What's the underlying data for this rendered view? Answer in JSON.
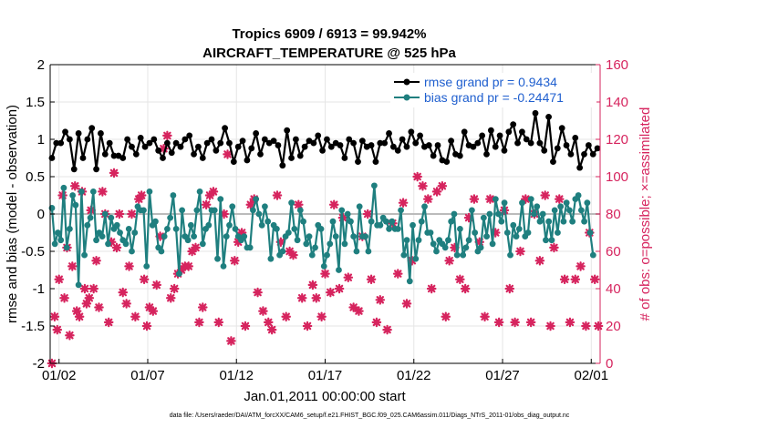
{
  "chart_data": {
    "type": "line",
    "title": "Tropics 6909 / 6913 = 99.942%",
    "subtitle": "AIRCRAFT_TEMPERATURE @ 525 hPa",
    "xlabel": "Jan.01,2011 00:00:00 start",
    "ylabel_left": "rmse and bias (model - observation)",
    "ylabel_right": "# of obs: o=possible; ×=assimilated",
    "ylim_left": [
      -2,
      2
    ],
    "ylim_right": [
      0,
      160
    ],
    "yticks_left": [
      "-2",
      "-1.5",
      "-1",
      "-0.5",
      "0",
      "0.5",
      "1",
      "1.5",
      "2"
    ],
    "yticks_right": [
      "0",
      "20",
      "40",
      "60",
      "80",
      "100",
      "120",
      "140",
      "160"
    ],
    "xlim": [
      0.5,
      31.5
    ],
    "xticks": [
      {
        "label": "01/02",
        "x": 1
      },
      {
        "label": "01/07",
        "x": 6
      },
      {
        "label": "01/12",
        "x": 11
      },
      {
        "label": "01/17",
        "x": 16
      },
      {
        "label": "01/22",
        "x": 21
      },
      {
        "label": "01/27",
        "x": 26
      },
      {
        "label": "02/01",
        "x": 31
      }
    ],
    "footnote": "data file: /Users/raeder/DAI/ATM_forcXX/CAM6_setup/f.e21.FHIST_BGC.f09_025.CAM6assim.011/Diags_NTrS_2011-01/obs_diag_output.nc",
    "series": [
      {
        "name": "rmse grand pr = 0.9434",
        "color": "#000000",
        "axis": "left",
        "values": [
          0.75,
          0.95,
          0.95,
          1.1,
          1.0,
          0.6,
          1.08,
          0.75,
          1.0,
          1.15,
          0.6,
          1.08,
          0.8,
          0.95,
          0.78,
          0.78,
          0.75,
          1.0,
          0.9,
          0.8,
          1.02,
          0.9,
          0.95,
          1.0,
          0.85,
          0.75,
          0.95,
          0.82,
          0.95,
          0.9,
          1.0,
          1.05,
          0.8,
          0.9,
          0.75,
          0.95,
          1.0,
          0.85,
          0.95,
          1.15,
          0.95,
          0.7,
          0.9,
          0.98,
          0.72,
          0.88,
          1.08,
          0.8,
          1.0,
          0.95,
          0.98,
          0.92,
          0.65,
          1.12,
          0.75,
          1.0,
          0.78,
          0.9,
          0.98,
          0.95,
          1.05,
          0.85,
          1.0,
          0.9,
          0.95,
          0.92,
          0.75,
          1.0,
          0.95,
          0.7,
          0.98,
          0.9,
          0.92,
          0.7,
          0.95,
          0.95,
          1.08,
          0.9,
          0.85,
          1.0,
          0.9,
          1.1,
          0.95,
          1.05,
          0.9,
          0.92,
          0.78,
          0.92,
          0.72,
          0.7,
          0.98,
          0.8,
          0.78,
          1.1,
          0.92,
          0.9,
          0.95,
          1.05,
          0.8,
          1.12,
          0.9,
          1.05,
          0.85,
          1.1,
          1.2,
          0.95,
          1.1,
          1.0,
          0.95,
          1.35,
          0.95,
          0.85,
          1.3,
          0.7,
          0.88,
          1.15,
          0.92,
          0.8,
          1.02,
          0.62,
          0.8,
          0.92,
          0.8,
          0.88,
          0.85,
          0.9,
          0.85,
          0.82,
          0.95,
          0.85,
          0.85,
          0.8,
          0.68,
          0.95,
          1.15,
          0.82,
          0.95,
          1.12,
          0.9,
          1.45,
          0.8,
          0.95,
          0.65,
          0.8,
          1.1,
          1.05,
          0.95,
          0.9,
          0.95,
          1.05,
          0.75,
          1.05,
          0.85,
          0.85,
          0.75,
          0.8,
          0.95,
          0.72,
          1.05
        ],
        "x_start": 0.6,
        "x_step": 0.25
      },
      {
        "name": "bias grand pr = -0.24471",
        "color": "#1f7f7f",
        "axis": "left",
        "values": [
          0.08,
          -0.4,
          -0.25,
          -0.35,
          0.35,
          -0.45,
          -0.2,
          0.25,
          0.12,
          -0.95,
          0.3,
          -0.55,
          -0.15,
          -0.05,
          0.3,
          -0.35,
          -0.25,
          -0.3,
          0.0,
          -0.4,
          -0.05,
          -0.2,
          -0.15,
          -0.25,
          -0.35,
          -0.4,
          -0.2,
          -0.5,
          -0.25,
          0.1,
          0.05,
          0.05,
          -0.7,
          0.3,
          -0.15,
          -0.1,
          -0.45,
          -0.5,
          -0.3,
          -0.2,
          -0.05,
          0.25,
          -0.2,
          -0.8,
          0.05,
          -0.3,
          -0.35,
          -0.15,
          -0.3,
          0.05,
          0.3,
          -0.4,
          -0.2,
          -0.15,
          0.05,
          0.05,
          -0.6,
          0.2,
          -0.7,
          -0.3,
          -0.15,
          0.1,
          -0.2,
          -0.3,
          -0.35,
          -0.3,
          -0.45,
          -0.45,
          0.05,
          0.2,
          0.0,
          -0.15,
          0.1,
          -0.1,
          -0.6,
          -0.15,
          -0.2,
          -0.55,
          -0.5,
          -0.3,
          -0.25,
          0.15,
          -0.2,
          -0.35,
          0.05,
          -0.1,
          -0.4,
          -0.3,
          -0.55,
          -0.45,
          -0.15,
          -0.2,
          -0.7,
          -0.55,
          -0.4,
          -0.1,
          -0.3,
          -0.75,
          0.05,
          -0.4,
          0.0,
          -0.1,
          -0.3,
          -0.5,
          0.1,
          -0.3,
          -0.3,
          -0.5,
          -0.1,
          0.38,
          -0.15,
          -0.15,
          -0.05,
          -0.1,
          -0.2,
          -0.1,
          -0.2,
          -0.2,
          0.05,
          -0.55,
          -0.35,
          -0.9,
          -0.15,
          -0.6,
          -0.35,
          -0.1,
          0.1,
          -0.25,
          -0.25,
          -0.4,
          -0.5,
          -0.35,
          -0.4,
          -0.45,
          -0.35,
          -0.1,
          0.0,
          -0.55,
          -0.2,
          -0.55,
          -0.45,
          -0.35,
          0.05,
          -0.25,
          -0.5,
          -0.45,
          -0.05,
          -0.3,
          0.0,
          -0.4,
          0.2,
          0.0,
          -0.1,
          0.15,
          -0.25,
          -0.55,
          -0.15,
          -0.3,
          -0.2,
          0.15,
          -0.3,
          -0.25,
          0.2,
          0.0,
          0.1,
          -0.1,
          0.0,
          -0.35,
          -0.1,
          -0.35,
          0.05,
          -0.25,
          0.1,
          -0.1,
          0.15,
          0.05,
          -0.1,
          0.2,
          0.25,
          0.05,
          -0.1,
          0.15,
          -0.25,
          -0.55
        ],
        "x_start": 0.6,
        "x_step": 0.1667
      },
      {
        "name": "observations (possible / assimilated)",
        "color": "#d6245e",
        "axis": "right",
        "marker": "star",
        "points": [
          [
            0.6,
            0
          ],
          [
            0.75,
            25
          ],
          [
            0.9,
            18
          ],
          [
            1.0,
            45
          ],
          [
            1.2,
            90
          ],
          [
            1.3,
            35
          ],
          [
            1.45,
            62
          ],
          [
            1.6,
            15
          ],
          [
            1.75,
            52
          ],
          [
            1.9,
            95
          ],
          [
            2.0,
            28
          ],
          [
            2.15,
            25
          ],
          [
            2.3,
            92
          ],
          [
            2.45,
            40
          ],
          [
            2.55,
            32
          ],
          [
            2.7,
            35
          ],
          [
            2.8,
            82
          ],
          [
            2.95,
            40
          ],
          [
            3.1,
            55
          ],
          [
            3.25,
            30
          ],
          [
            3.45,
            92
          ],
          [
            3.6,
            80
          ],
          [
            3.8,
            22
          ],
          [
            3.95,
            65
          ],
          [
            4.1,
            102
          ],
          [
            4.25,
            62
          ],
          [
            4.4,
            80
          ],
          [
            4.6,
            38
          ],
          [
            4.8,
            32
          ],
          [
            4.95,
            52
          ],
          [
            5.1,
            80
          ],
          [
            5.3,
            25
          ],
          [
            5.5,
            88
          ],
          [
            5.65,
            90
          ],
          [
            5.8,
            45
          ],
          [
            5.95,
            20
          ],
          [
            6.1,
            30
          ],
          [
            6.3,
            28
          ],
          [
            6.5,
            42
          ],
          [
            6.7,
            68
          ],
          [
            6.9,
            115
          ],
          [
            7.1,
            122
          ],
          [
            7.3,
            35
          ],
          [
            7.5,
            40
          ],
          [
            7.7,
            48
          ],
          [
            7.9,
            50
          ],
          [
            8.1,
            52
          ],
          [
            8.3,
            52
          ],
          [
            8.5,
            60
          ],
          [
            8.7,
            62
          ],
          [
            8.9,
            22
          ],
          [
            9.1,
            30
          ],
          [
            9.3,
            85
          ],
          [
            9.5,
            90
          ],
          [
            9.7,
            92
          ],
          [
            10.0,
            22
          ],
          [
            10.3,
            80
          ],
          [
            10.5,
            112
          ],
          [
            10.7,
            12
          ],
          [
            10.9,
            55
          ],
          [
            11.1,
            65
          ],
          [
            11.3,
            70
          ],
          [
            11.5,
            20
          ],
          [
            11.8,
            85
          ],
          [
            12.0,
            88
          ],
          [
            12.2,
            38
          ],
          [
            12.5,
            28
          ],
          [
            12.8,
            22
          ],
          [
            13.0,
            18
          ],
          [
            13.3,
            90
          ],
          [
            13.5,
            65
          ],
          [
            13.8,
            25
          ],
          [
            14.0,
            60
          ],
          [
            14.2,
            58
          ],
          [
            14.5,
            85
          ],
          [
            14.7,
            35
          ],
          [
            15.0,
            20
          ],
          [
            15.3,
            42
          ],
          [
            15.5,
            35
          ],
          [
            15.8,
            25
          ],
          [
            16.0,
            48
          ],
          [
            16.3,
            38
          ],
          [
            16.5,
            85
          ],
          [
            16.8,
            40
          ],
          [
            17.0,
            78
          ],
          [
            17.3,
            46
          ],
          [
            17.6,
            30
          ],
          [
            17.9,
            28
          ],
          [
            18.1,
            68
          ],
          [
            18.4,
            80
          ],
          [
            18.6,
            45
          ],
          [
            18.9,
            22
          ],
          [
            19.1,
            34
          ],
          [
            19.5,
            18
          ],
          [
            19.8,
            75
          ],
          [
            20.1,
            48
          ],
          [
            20.4,
            86
          ],
          [
            20.6,
            32
          ],
          [
            20.9,
            55
          ],
          [
            21.2,
            100
          ],
          [
            21.5,
            95
          ],
          [
            21.8,
            88
          ],
          [
            22.0,
            40
          ],
          [
            22.3,
            92
          ],
          [
            22.6,
            95
          ],
          [
            22.8,
            25
          ],
          [
            23.0,
            55
          ],
          [
            23.3,
            62
          ],
          [
            23.6,
            45
          ],
          [
            23.9,
            40
          ],
          [
            24.1,
            78
          ],
          [
            24.4,
            88
          ],
          [
            24.7,
            65
          ],
          [
            25.0,
            25
          ],
          [
            25.3,
            88
          ],
          [
            25.6,
            70
          ],
          [
            25.8,
            22
          ],
          [
            26.1,
            82
          ],
          [
            26.4,
            40
          ],
          [
            26.7,
            22
          ],
          [
            27.0,
            60
          ],
          [
            27.3,
            88
          ],
          [
            27.6,
            22
          ],
          [
            27.8,
            80
          ],
          [
            28.1,
            55
          ],
          [
            28.4,
            90
          ],
          [
            28.7,
            20
          ],
          [
            28.9,
            62
          ],
          [
            29.2,
            88
          ],
          [
            29.5,
            45
          ],
          [
            29.8,
            22
          ],
          [
            30.1,
            45
          ],
          [
            30.4,
            52
          ],
          [
            30.7,
            20
          ],
          [
            30.9,
            70
          ],
          [
            31.2,
            45
          ],
          [
            31.4,
            20
          ]
        ]
      }
    ],
    "colors": {
      "rmse": "#000000",
      "bias": "#1f7f7f",
      "obs": "#d6245e",
      "zero_line": "#bbbbbb",
      "rmse_legend_text": "#1f5fcf",
      "right_axis": "#d6245e"
    }
  }
}
